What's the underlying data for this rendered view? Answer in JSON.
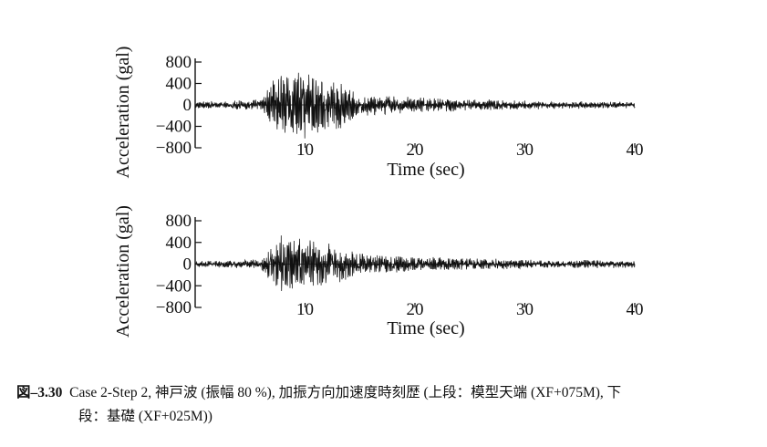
{
  "chart_data": [
    {
      "type": "line",
      "xlabel": "Time (sec)",
      "ylabel": "Acceleration (gal)",
      "xlim": [
        0,
        40
      ],
      "ylim": [
        -800,
        800
      ],
      "x_ticks": [
        "10",
        "20",
        "30",
        "40"
      ],
      "y_ticks": [
        "800",
        "400",
        "0",
        "−400",
        "−800"
      ],
      "grid": false,
      "series": [
        {
          "x": [
            0,
            2,
            4,
            6,
            7,
            7.5,
            8,
            9,
            10,
            11,
            12,
            13,
            14,
            15,
            16,
            18,
            20,
            22,
            24,
            26,
            28,
            30,
            32,
            34,
            36,
            38,
            40
          ],
          "peak_envelope": [
            60,
            70,
            80,
            100,
            400,
            520,
            600,
            580,
            580,
            560,
            550,
            480,
            300,
            220,
            180,
            160,
            140,
            120,
            110,
            100,
            90,
            80,
            70,
            70,
            60,
            60,
            60
          ]
        }
      ]
    },
    {
      "type": "line",
      "xlabel": "Time (sec)",
      "ylabel": "Acceleration (gal)",
      "xlim": [
        0,
        40
      ],
      "ylim": [
        -800,
        800
      ],
      "x_ticks": [
        "10",
        "20",
        "30",
        "40"
      ],
      "y_ticks": [
        "800",
        "400",
        "0",
        "−400",
        "−800"
      ],
      "grid": false,
      "series": [
        {
          "x": [
            0,
            2,
            4,
            6,
            7,
            7.5,
            8,
            9,
            10,
            11,
            12,
            13,
            14,
            15,
            16,
            18,
            20,
            22,
            24,
            26,
            28,
            30,
            32,
            34,
            36,
            38,
            40
          ],
          "peak_envelope": [
            50,
            60,
            70,
            90,
            350,
            480,
            520,
            480,
            440,
            420,
            380,
            330,
            250,
            200,
            170,
            150,
            130,
            120,
            110,
            100,
            90,
            80,
            70,
            70,
            70,
            70,
            70
          ]
        }
      ]
    }
  ],
  "caption": {
    "label": "図–3.30",
    "line1": "Case 2-Step 2, 神戸波 (振幅 80 %), 加振方向加速度時刻歴 (上段：模型天端 (XF+075M),  下",
    "line2": "段：基礎 (XF+025M))"
  }
}
